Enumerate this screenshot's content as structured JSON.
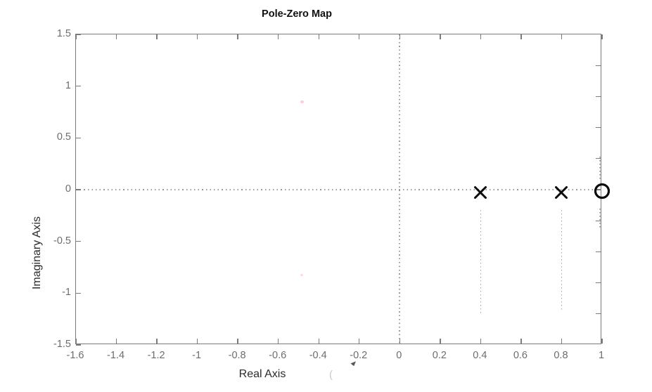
{
  "figure": {
    "title": "Pole-Zero Map",
    "xlabel": "Real Axis",
    "ylabel": "Imaginary Axis",
    "xlabel_artifact": "("
  },
  "chart_data": {
    "type": "scatter",
    "title": "Pole-Zero Map",
    "xlabel": "Real Axis",
    "ylabel": "Imaginary Axis",
    "xlim": [
      -1.6,
      1
    ],
    "ylim": [
      -1.5,
      1.5
    ],
    "x_ticks": {
      "values": [
        -1.6,
        -1.4,
        -1.2,
        -1,
        -0.8,
        -0.6,
        -0.4,
        -0.2,
        0,
        0.2,
        0.4,
        0.6,
        0.8,
        1
      ],
      "labels": [
        "-1.6",
        "-1.4",
        "-1.2",
        "-1",
        "-0.8",
        "-0.6",
        "-0.4",
        "-0.2",
        "0",
        "0.2",
        "0.4",
        "0.6",
        "0.8",
        "1"
      ]
    },
    "y_ticks": {
      "values": [
        1.5,
        1,
        0.5,
        0,
        -0.5,
        -1,
        -1.5
      ],
      "labels": [
        "1.5",
        "1",
        "0.5",
        "0",
        "-0.5",
        "-1",
        "-1.5"
      ]
    },
    "y_ticks_right_values": [
      1.2,
      0.9,
      0.6,
      0.3,
      0,
      -0.3,
      -0.6,
      -0.9,
      -1.2
    ],
    "grid": "dotted zero-axis lines at x=0 and y=0, box on, inward ticks",
    "legend": "none",
    "series": [
      {
        "name": "poles",
        "marker": "x",
        "points": [
          [
            0.4,
            0
          ],
          [
            0.8,
            0
          ]
        ]
      },
      {
        "name": "zeros",
        "marker": "o",
        "points": [
          [
            1.0,
            0
          ]
        ]
      }
    ],
    "stems_dotted": [
      {
        "x": 0.4,
        "y_from": -0.2,
        "y_to": -1.2
      },
      {
        "x": 0.8,
        "y_from": -0.2,
        "y_to": -1.17
      },
      {
        "x": 0.99,
        "y_from": 0.32,
        "y_to": 0.1
      },
      {
        "x": 0.99,
        "y_from": -0.18,
        "y_to": -0.37
      }
    ]
  },
  "colors": {
    "background": "#ffffff",
    "axis_box": "#7b7b7b",
    "tick_label": "#6d6d6d",
    "grid_dots": "#9c9c9c",
    "marker": "#0a0a0a",
    "label_text": "#2b2b2b"
  }
}
